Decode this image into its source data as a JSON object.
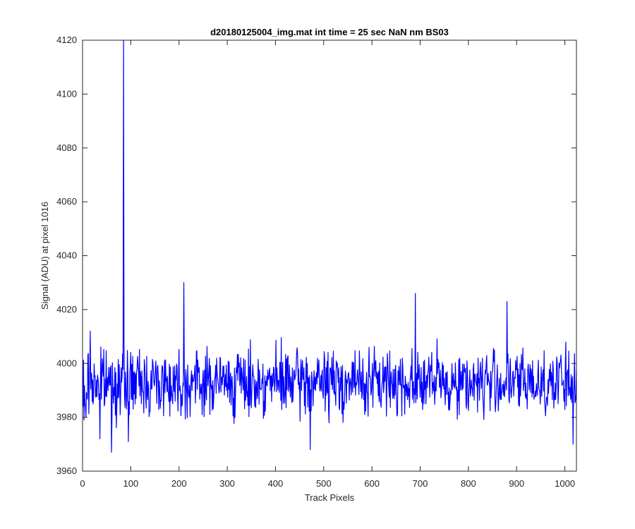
{
  "chart_data": {
    "type": "line",
    "title": "d20180125004_img.mat int time = 25 sec  NaN nm BS03",
    "xlabel": "Track Pixels",
    "ylabel": "Signal (ADU) at pixel 1016",
    "xlim": [
      0,
      1024
    ],
    "ylim": [
      3960,
      4120
    ],
    "xticks": [
      0,
      100,
      200,
      300,
      400,
      500,
      600,
      700,
      800,
      900,
      1000
    ],
    "yticks": [
      3960,
      3980,
      4000,
      4020,
      4040,
      4060,
      4080,
      4100,
      4120
    ],
    "grid": false,
    "legend": "none",
    "series": [
      {
        "color": "#0000ff",
        "noise": {
          "x_start": 1,
          "x_end": 1024,
          "mean": 3993,
          "min": 3967,
          "max": 4013,
          "seed": 7
        },
        "notable_points": [
          {
            "x": 1,
            "y": 3984
          },
          {
            "x": 3,
            "y": 3979
          },
          {
            "x": 5,
            "y": 3985
          },
          {
            "x": 7,
            "y": 3980
          },
          {
            "x": 16,
            "y": 4012
          },
          {
            "x": 36,
            "y": 3972
          },
          {
            "x": 60,
            "y": 3967
          },
          {
            "x": 85,
            "y": 4120
          },
          {
            "x": 87,
            "y": 3988
          },
          {
            "x": 95,
            "y": 3971
          },
          {
            "x": 210,
            "y": 4030
          },
          {
            "x": 472,
            "y": 3968
          },
          {
            "x": 690,
            "y": 4026
          },
          {
            "x": 880,
            "y": 4023
          },
          {
            "x": 1017,
            "y": 3970
          },
          {
            "x": 1024,
            "y": 3998
          }
        ]
      }
    ]
  }
}
